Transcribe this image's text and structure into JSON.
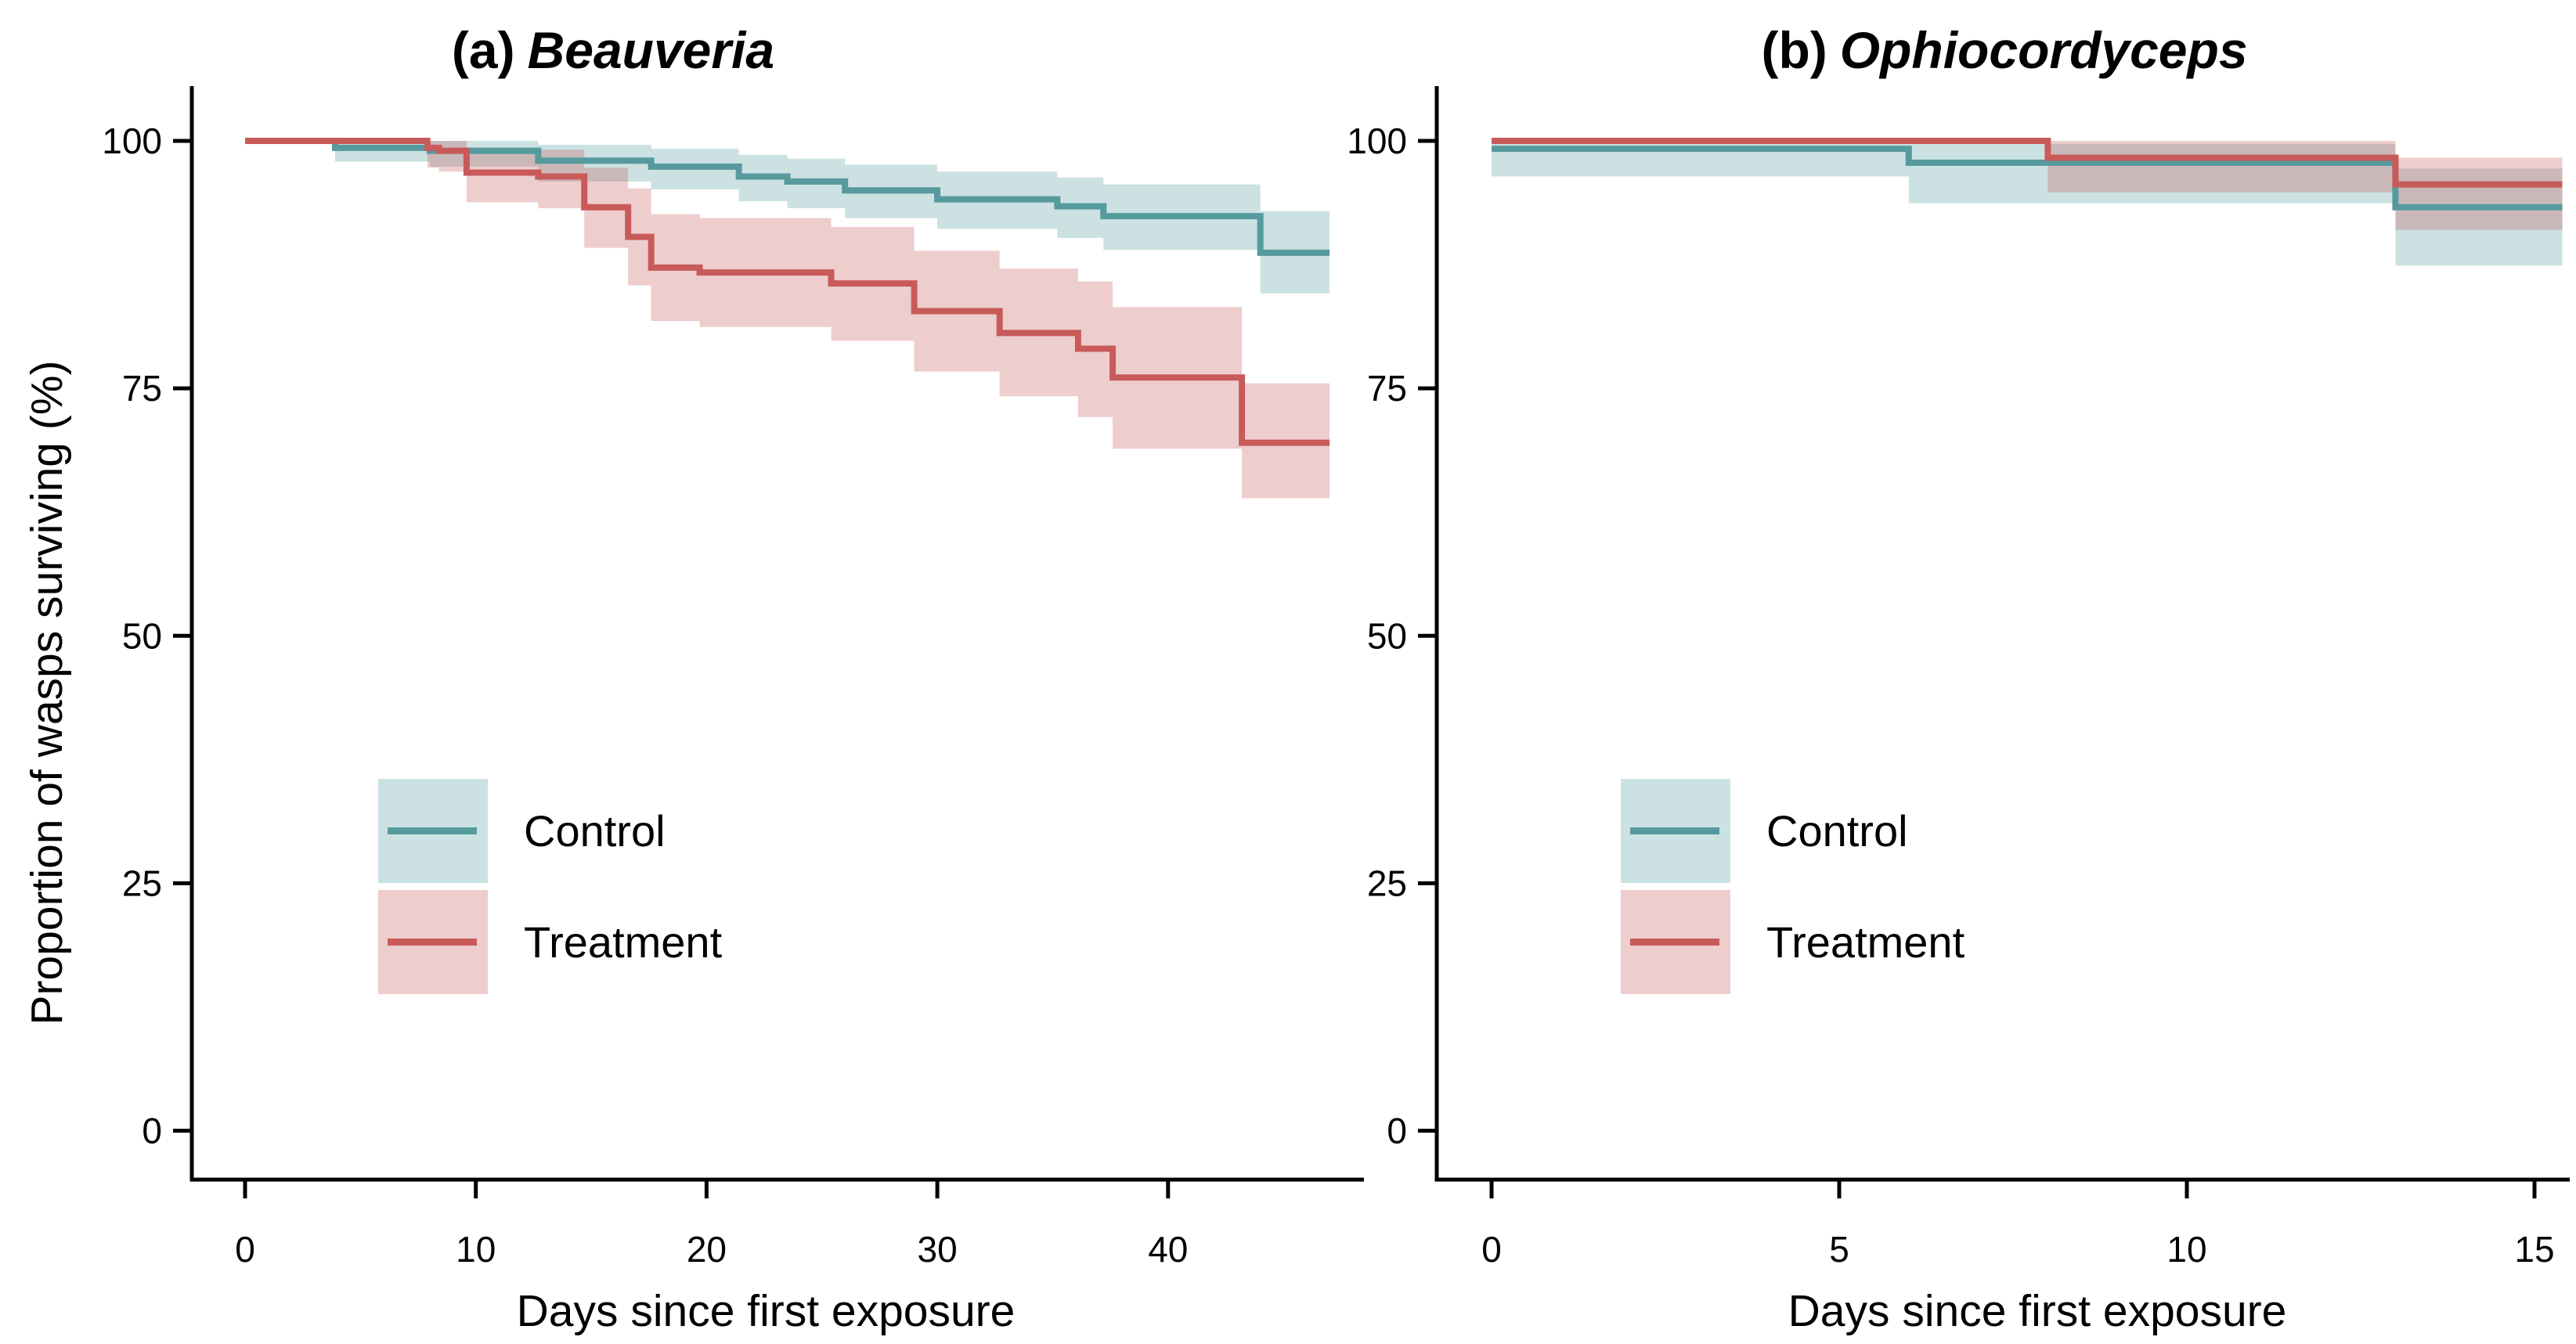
{
  "figure": {
    "type": "kaplan-meier-survival-figure",
    "background": "#ffffff",
    "ylabel": "Proportion of wasps surviving (%)",
    "panel_a": {
      "title_prefix": "(a)",
      "title_species": "Beauveria",
      "xlabel": "Days since first exposure"
    },
    "panel_b": {
      "title_prefix": "(b)",
      "title_species": "Ophiocordyceps",
      "xlabel": "Days since first exposure"
    },
    "legend": {
      "control": "Control",
      "treatment": "Treatment"
    },
    "colors": {
      "control_line": "#569A9E",
      "treatment_line": "#C85B5A",
      "control_fill": "rgba(86,154,158,0.30)",
      "treatment_fill": "rgba(200,91,90,0.30)",
      "axis": "#000000",
      "text": "#000000"
    }
  },
  "chart_data": [
    {
      "type": "line",
      "variant": "kaplan-meier-step-with-confidence-ribbon",
      "title": "(a) Beauveria",
      "xlabel": "Days since first exposure",
      "ylabel": "Proportion of wasps surviving (%)",
      "xlim": [
        -2.3,
        48.5
      ],
      "ylim": [
        0,
        100
      ],
      "xticks": [
        0,
        10,
        20,
        30,
        40
      ],
      "yticks": [
        100,
        75,
        50,
        25,
        0
      ],
      "x_end": 47,
      "grid": false,
      "legend_position": "inside bottom-left",
      "series": [
        {
          "name": "Control",
          "role": "control",
          "steps": [
            [
              0,
              100
            ],
            [
              3.9,
              99.3
            ],
            [
              8,
              99.0
            ],
            [
              12.7,
              98.0
            ],
            [
              17.6,
              97.4
            ],
            [
              21.4,
              96.4
            ],
            [
              23.5,
              95.9
            ],
            [
              26,
              95.0
            ],
            [
              30,
              94.1
            ],
            [
              35.2,
              93.4
            ],
            [
              37.2,
              92.4
            ],
            [
              44,
              88.7
            ]
          ],
          "ribbon": [
            [
              0,
              100,
              100
            ],
            [
              3.9,
              97.9,
              100
            ],
            [
              8,
              97.4,
              100
            ],
            [
              12.7,
              95.9,
              99.6
            ],
            [
              17.6,
              95.1,
              99.2
            ],
            [
              21.4,
              93.9,
              98.6
            ],
            [
              23.5,
              93.2,
              98.2
            ],
            [
              26,
              92.2,
              97.6
            ],
            [
              30,
              91.1,
              96.9
            ],
            [
              35.2,
              90.2,
              96.3
            ],
            [
              37.2,
              89.0,
              95.6
            ],
            [
              44,
              84.6,
              92.9
            ]
          ]
        },
        {
          "name": "Treatment",
          "role": "treatment",
          "steps": [
            [
              0,
              100
            ],
            [
              7.9,
              99.3
            ],
            [
              8.4,
              99.0
            ],
            [
              9.6,
              96.8
            ],
            [
              12.7,
              96.4
            ],
            [
              14.7,
              93.3
            ],
            [
              16.6,
              90.3
            ],
            [
              17.6,
              87.2
            ],
            [
              19.7,
              86.7
            ],
            [
              25.4,
              85.6
            ],
            [
              29,
              82.8
            ],
            [
              32.7,
              80.6
            ],
            [
              36.1,
              79.0
            ],
            [
              37.6,
              76.1
            ],
            [
              43.2,
              69.5
            ]
          ],
          "ribbon": [
            [
              0,
              100,
              100
            ],
            [
              7.9,
              97.3,
              100
            ],
            [
              8.4,
              96.9,
              100
            ],
            [
              9.6,
              93.8,
              99.3
            ],
            [
              12.7,
              93.2,
              99.1
            ],
            [
              14.7,
              89.2,
              97.3
            ],
            [
              16.6,
              85.4,
              95.2
            ],
            [
              17.6,
              81.8,
              92.6
            ],
            [
              19.7,
              81.2,
              92.2
            ],
            [
              25.4,
              79.8,
              91.3
            ],
            [
              29,
              76.7,
              88.9
            ],
            [
              32.7,
              74.2,
              87.1
            ],
            [
              36.1,
              72.1,
              85.8
            ],
            [
              37.6,
              68.9,
              83.2
            ],
            [
              43.2,
              63.9,
              75.5
            ]
          ]
        }
      ]
    },
    {
      "type": "line",
      "variant": "kaplan-meier-step-with-confidence-ribbon",
      "title": "(b) Ophiocordyceps",
      "xlabel": "Days since first exposure",
      "ylabel": "Proportion of wasps surviving (%)",
      "xlim": [
        -0.8,
        15.5
      ],
      "ylim": [
        0,
        100
      ],
      "xticks": [
        0,
        5,
        10,
        15
      ],
      "yticks": [
        100,
        75,
        50,
        25,
        0
      ],
      "x_end": 15.4,
      "grid": false,
      "legend_position": "inside bottom-left",
      "series": [
        {
          "name": "Control",
          "role": "control",
          "steps": [
            [
              0,
              99.2
            ],
            [
              6,
              97.8
            ],
            [
              13,
              93.3
            ]
          ],
          "ribbon": [
            [
              0,
              96.4,
              100
            ],
            [
              6,
              93.7,
              99.7
            ],
            [
              13,
              87.4,
              97.2
            ]
          ]
        },
        {
          "name": "Treatment",
          "role": "treatment",
          "steps": [
            [
              0,
              100
            ],
            [
              8,
              98.3
            ],
            [
              13,
              95.6
            ]
          ],
          "ribbon": [
            [
              0,
              100,
              100
            ],
            [
              8,
              94.8,
              100
            ],
            [
              13,
              91.0,
              98.3
            ]
          ]
        }
      ]
    }
  ]
}
